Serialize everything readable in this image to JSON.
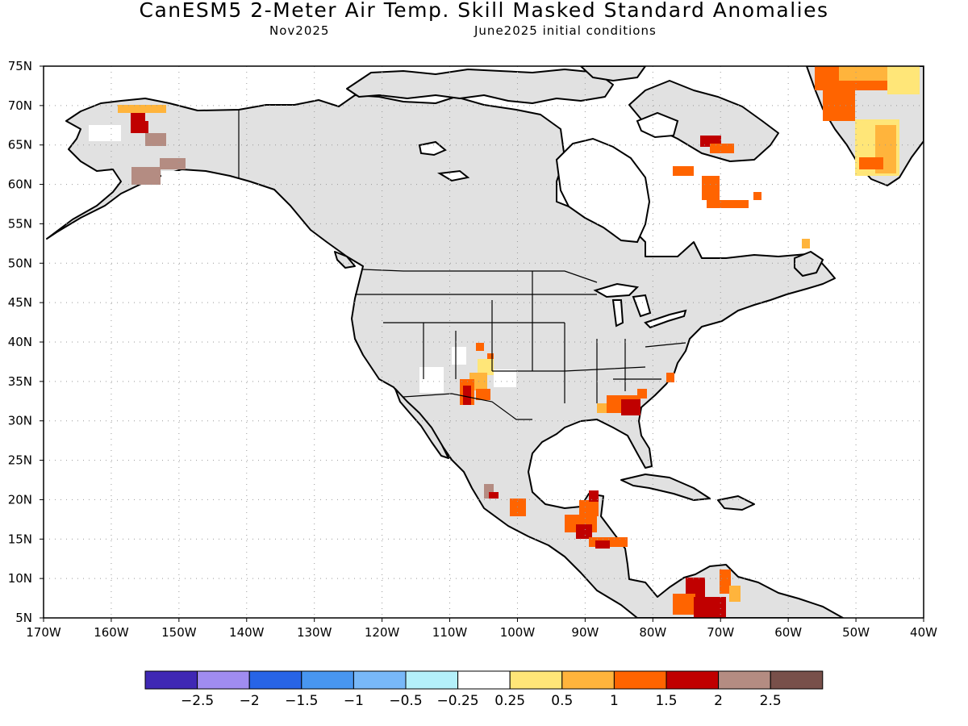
{
  "title": "CanESM5 2-Meter Air Temp. Skill Masked Standard Anomalies",
  "subtitle_left": "Nov2025",
  "subtitle_right": "June2025 initial conditions",
  "map": {
    "lon_range": [
      -170,
      -40
    ],
    "lat_range": [
      5,
      75
    ],
    "lon_ticks": [
      {
        "v": -170,
        "label": "170W"
      },
      {
        "v": -160,
        "label": "160W"
      },
      {
        "v": -150,
        "label": "150W"
      },
      {
        "v": -140,
        "label": "140W"
      },
      {
        "v": -130,
        "label": "130W"
      },
      {
        "v": -120,
        "label": "120W"
      },
      {
        "v": -110,
        "label": "110W"
      },
      {
        "v": -100,
        "label": "100W"
      },
      {
        "v": -90,
        "label": "90W"
      },
      {
        "v": -80,
        "label": "80W"
      },
      {
        "v": -70,
        "label": "70W"
      },
      {
        "v": -60,
        "label": "60W"
      },
      {
        "v": -50,
        "label": "50W"
      },
      {
        "v": -40,
        "label": "40W"
      }
    ],
    "lat_ticks": [
      {
        "v": 75,
        "label": "75N"
      },
      {
        "v": 70,
        "label": "70N"
      },
      {
        "v": 65,
        "label": "65N"
      },
      {
        "v": 60,
        "label": "60N"
      },
      {
        "v": 55,
        "label": "55N"
      },
      {
        "v": 50,
        "label": "50N"
      },
      {
        "v": 45,
        "label": "45N"
      },
      {
        "v": 40,
        "label": "40N"
      },
      {
        "v": 35,
        "label": "35N"
      },
      {
        "v": 30,
        "label": "30N"
      },
      {
        "v": 25,
        "label": "25N"
      },
      {
        "v": 20,
        "label": "20N"
      },
      {
        "v": 15,
        "label": "15N"
      },
      {
        "v": 10,
        "label": "10N"
      },
      {
        "v": 5,
        "label": "5N"
      }
    ],
    "land_color": "#e1e1e1",
    "ocean_color": "#ffffff",
    "grid": "dotted"
  },
  "colorbar": {
    "colors": [
      "#3f28b4",
      "#a08cf0",
      "#2864e6",
      "#4896f0",
      "#78b8f8",
      "#b4f0fa",
      "#ffffff",
      "#ffe678",
      "#ffb43c",
      "#ff6400",
      "#c00000",
      "#b48c82",
      "#78504a"
    ],
    "labels": [
      "-2.5",
      "-2",
      "-1.5",
      "-1",
      "-0.5",
      "-0.25",
      "0.25",
      "0.5",
      "1",
      "1.5",
      "2",
      "2.5"
    ]
  }
}
